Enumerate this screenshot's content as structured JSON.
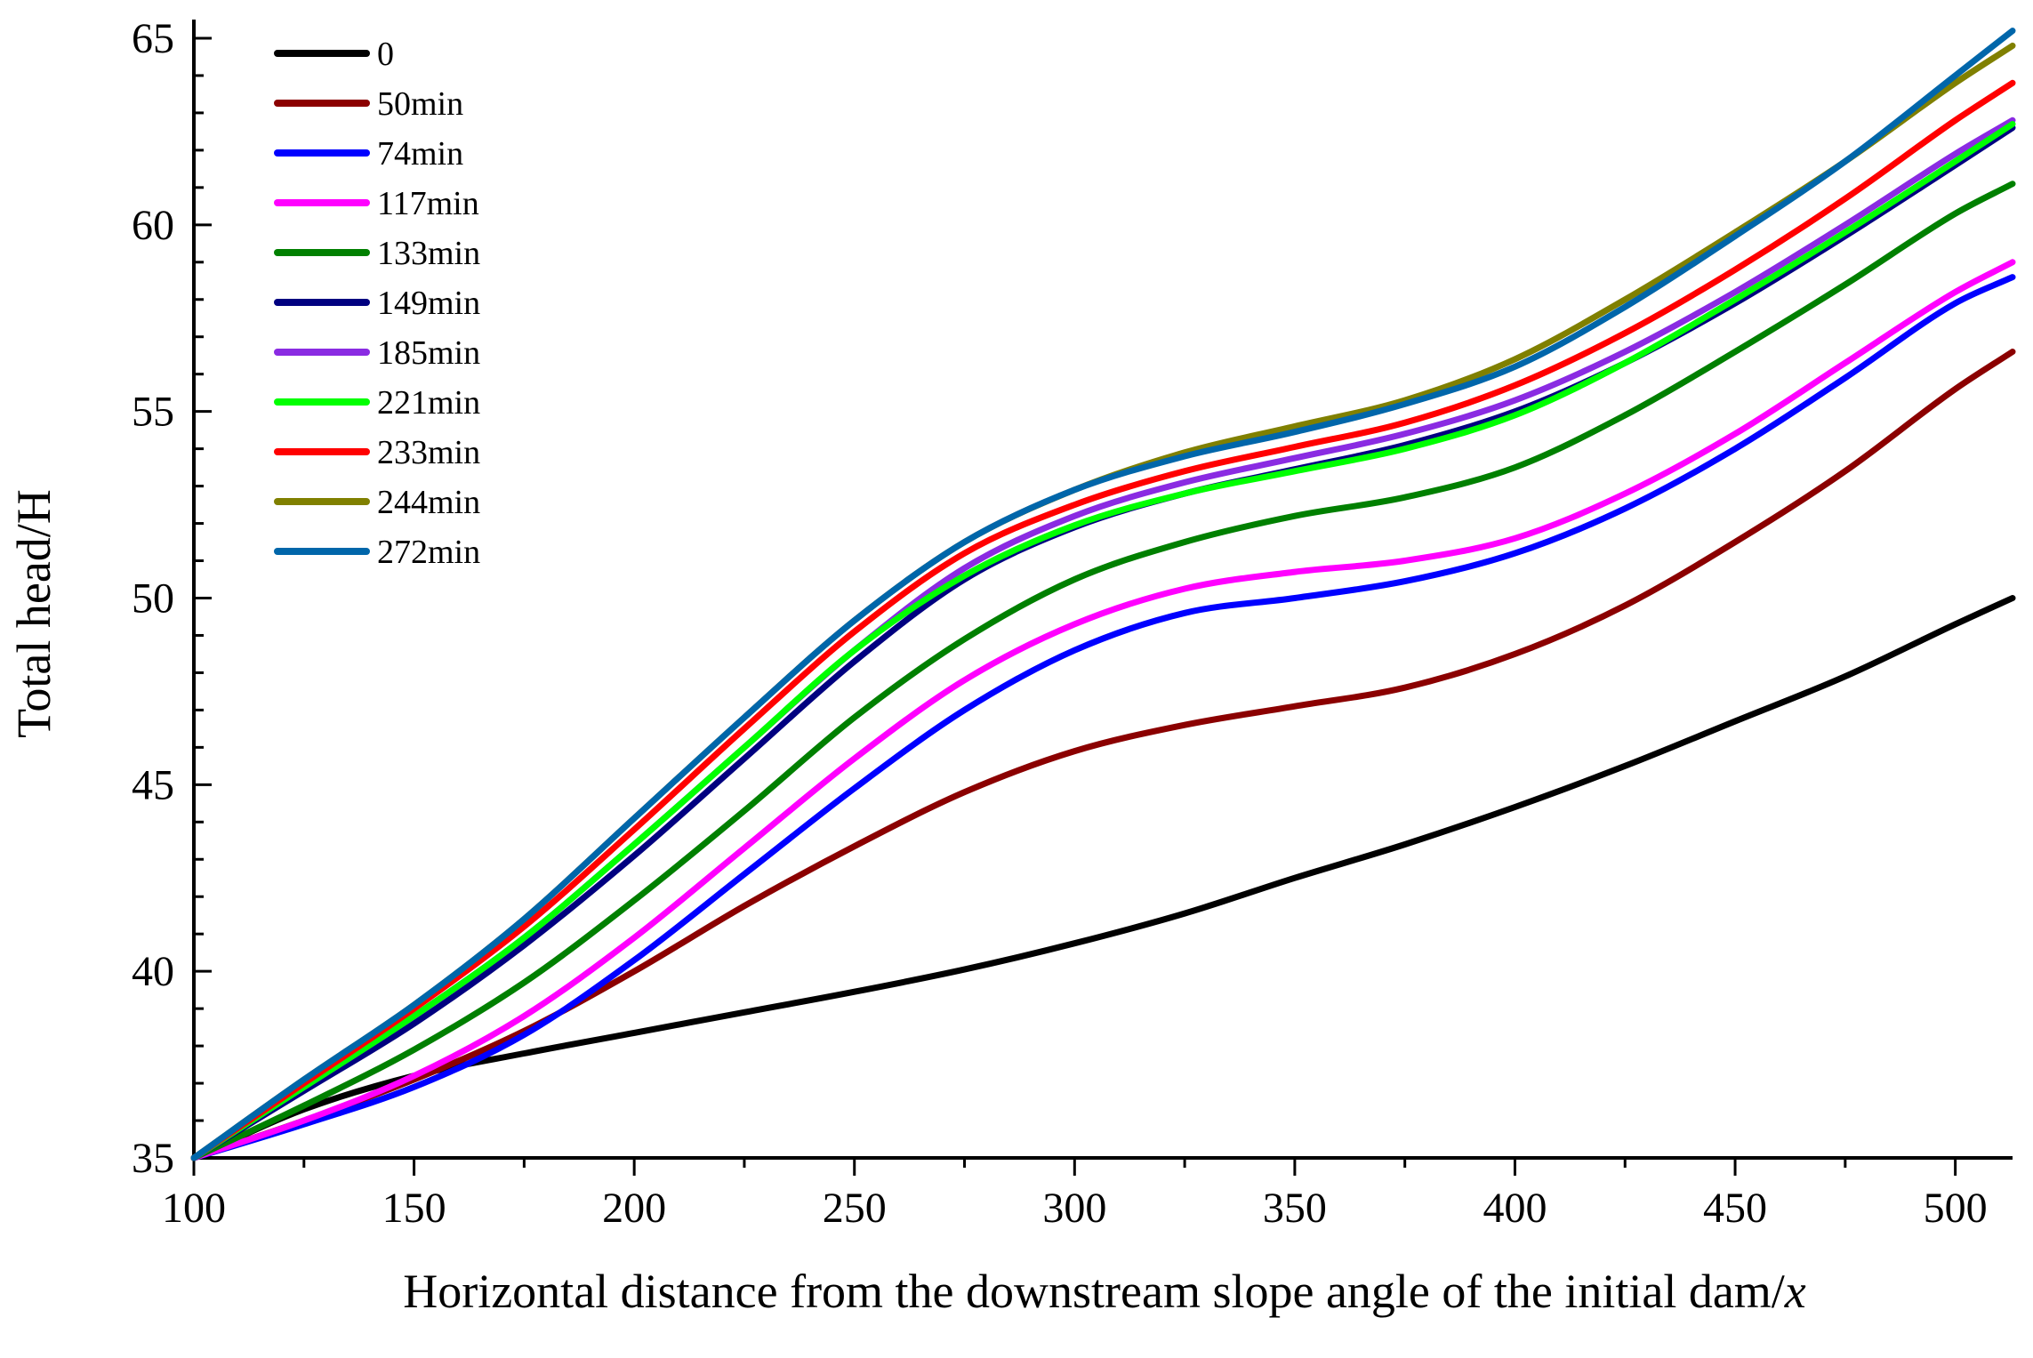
{
  "chart_data": {
    "type": "line",
    "title": "",
    "xlabel_main": "Horizontal distance from the downstream slope angle of the initial dam/",
    "xlabel_italic": "x",
    "ylabel": "Total head/H",
    "xlim": [
      100,
      513
    ],
    "ylim": [
      35,
      65.5
    ],
    "x_ticks": [
      100,
      150,
      200,
      250,
      300,
      350,
      400,
      450,
      500
    ],
    "y_ticks": [
      35,
      40,
      45,
      50,
      55,
      60,
      65
    ],
    "x_tick_labels": [
      "100",
      "150",
      "200",
      "250",
      "300",
      "350",
      "400",
      "450",
      "500"
    ],
    "y_tick_labels": [
      "35",
      "40",
      "45",
      "50",
      "55",
      "60",
      "65"
    ],
    "grid": false,
    "legend_position": "top-left",
    "x": [
      100,
      125,
      150,
      175,
      200,
      225,
      250,
      275,
      300,
      325,
      350,
      375,
      400,
      425,
      450,
      475,
      500,
      513
    ],
    "series": [
      {
        "name": "0",
        "color": "#000000",
        "values": [
          35.0,
          36.3,
          37.2,
          37.8,
          38.35,
          38.9,
          39.45,
          40.05,
          40.75,
          41.55,
          42.5,
          43.4,
          44.4,
          45.5,
          46.7,
          47.9,
          49.3,
          50.0
        ]
      },
      {
        "name": "50min",
        "color": "#8b0000",
        "values": [
          35.0,
          36.0,
          37.1,
          38.4,
          40.0,
          41.75,
          43.35,
          44.8,
          45.9,
          46.6,
          47.1,
          47.6,
          48.5,
          49.8,
          51.5,
          53.4,
          55.6,
          56.6
        ]
      },
      {
        "name": "74min",
        "color": "#0000ff",
        "values": [
          35.0,
          35.9,
          36.9,
          38.3,
          40.3,
          42.6,
          44.9,
          47.0,
          48.6,
          49.6,
          50.0,
          50.45,
          51.2,
          52.4,
          54.0,
          55.9,
          57.9,
          58.6
        ]
      },
      {
        "name": "117min",
        "color": "#ff00ff",
        "values": [
          35.0,
          36.0,
          37.2,
          38.8,
          40.9,
          43.3,
          45.7,
          47.8,
          49.3,
          50.25,
          50.7,
          51.0,
          51.6,
          52.8,
          54.4,
          56.3,
          58.2,
          59.0
        ]
      },
      {
        "name": "133min",
        "color": "#008000",
        "values": [
          35.0,
          36.4,
          37.9,
          39.7,
          41.9,
          44.3,
          46.8,
          48.9,
          50.5,
          51.5,
          52.2,
          52.7,
          53.5,
          54.9,
          56.6,
          58.4,
          60.3,
          61.1
        ]
      },
      {
        "name": "149min",
        "color": "#000080",
        "values": [
          35.0,
          36.8,
          38.6,
          40.7,
          43.1,
          45.7,
          48.3,
          50.5,
          51.9,
          52.8,
          53.45,
          54.1,
          55.0,
          56.3,
          57.9,
          59.7,
          61.6,
          62.6
        ]
      },
      {
        "name": "185min",
        "color": "#8a2be2",
        "values": [
          35.0,
          36.9,
          38.8,
          40.9,
          43.4,
          46.0,
          48.6,
          50.8,
          52.2,
          53.1,
          53.75,
          54.4,
          55.3,
          56.6,
          58.2,
          60.0,
          61.9,
          62.8
        ]
      },
      {
        "name": "221min",
        "color": "#00ff00",
        "values": [
          35.0,
          36.9,
          38.8,
          40.9,
          43.4,
          46.0,
          48.6,
          50.6,
          51.95,
          52.8,
          53.4,
          54.0,
          54.9,
          56.3,
          58.0,
          59.8,
          61.7,
          62.7
        ]
      },
      {
        "name": "233min",
        "color": "#ff0000",
        "values": [
          35.0,
          37.0,
          39.0,
          41.2,
          43.8,
          46.5,
          49.1,
          51.2,
          52.5,
          53.4,
          54.05,
          54.7,
          55.7,
          57.1,
          58.8,
          60.7,
          62.8,
          63.8
        ]
      },
      {
        "name": "244min",
        "color": "#808000",
        "values": [
          35.0,
          37.1,
          39.1,
          41.4,
          44.1,
          46.8,
          49.4,
          51.5,
          52.9,
          53.9,
          54.6,
          55.3,
          56.4,
          58.0,
          59.8,
          61.7,
          63.8,
          64.8
        ]
      },
      {
        "name": "272min",
        "color": "#0066aa",
        "values": [
          35.0,
          37.1,
          39.1,
          41.4,
          44.1,
          46.8,
          49.4,
          51.5,
          52.9,
          53.8,
          54.45,
          55.2,
          56.2,
          57.8,
          59.7,
          61.7,
          64.0,
          65.2
        ]
      }
    ]
  }
}
